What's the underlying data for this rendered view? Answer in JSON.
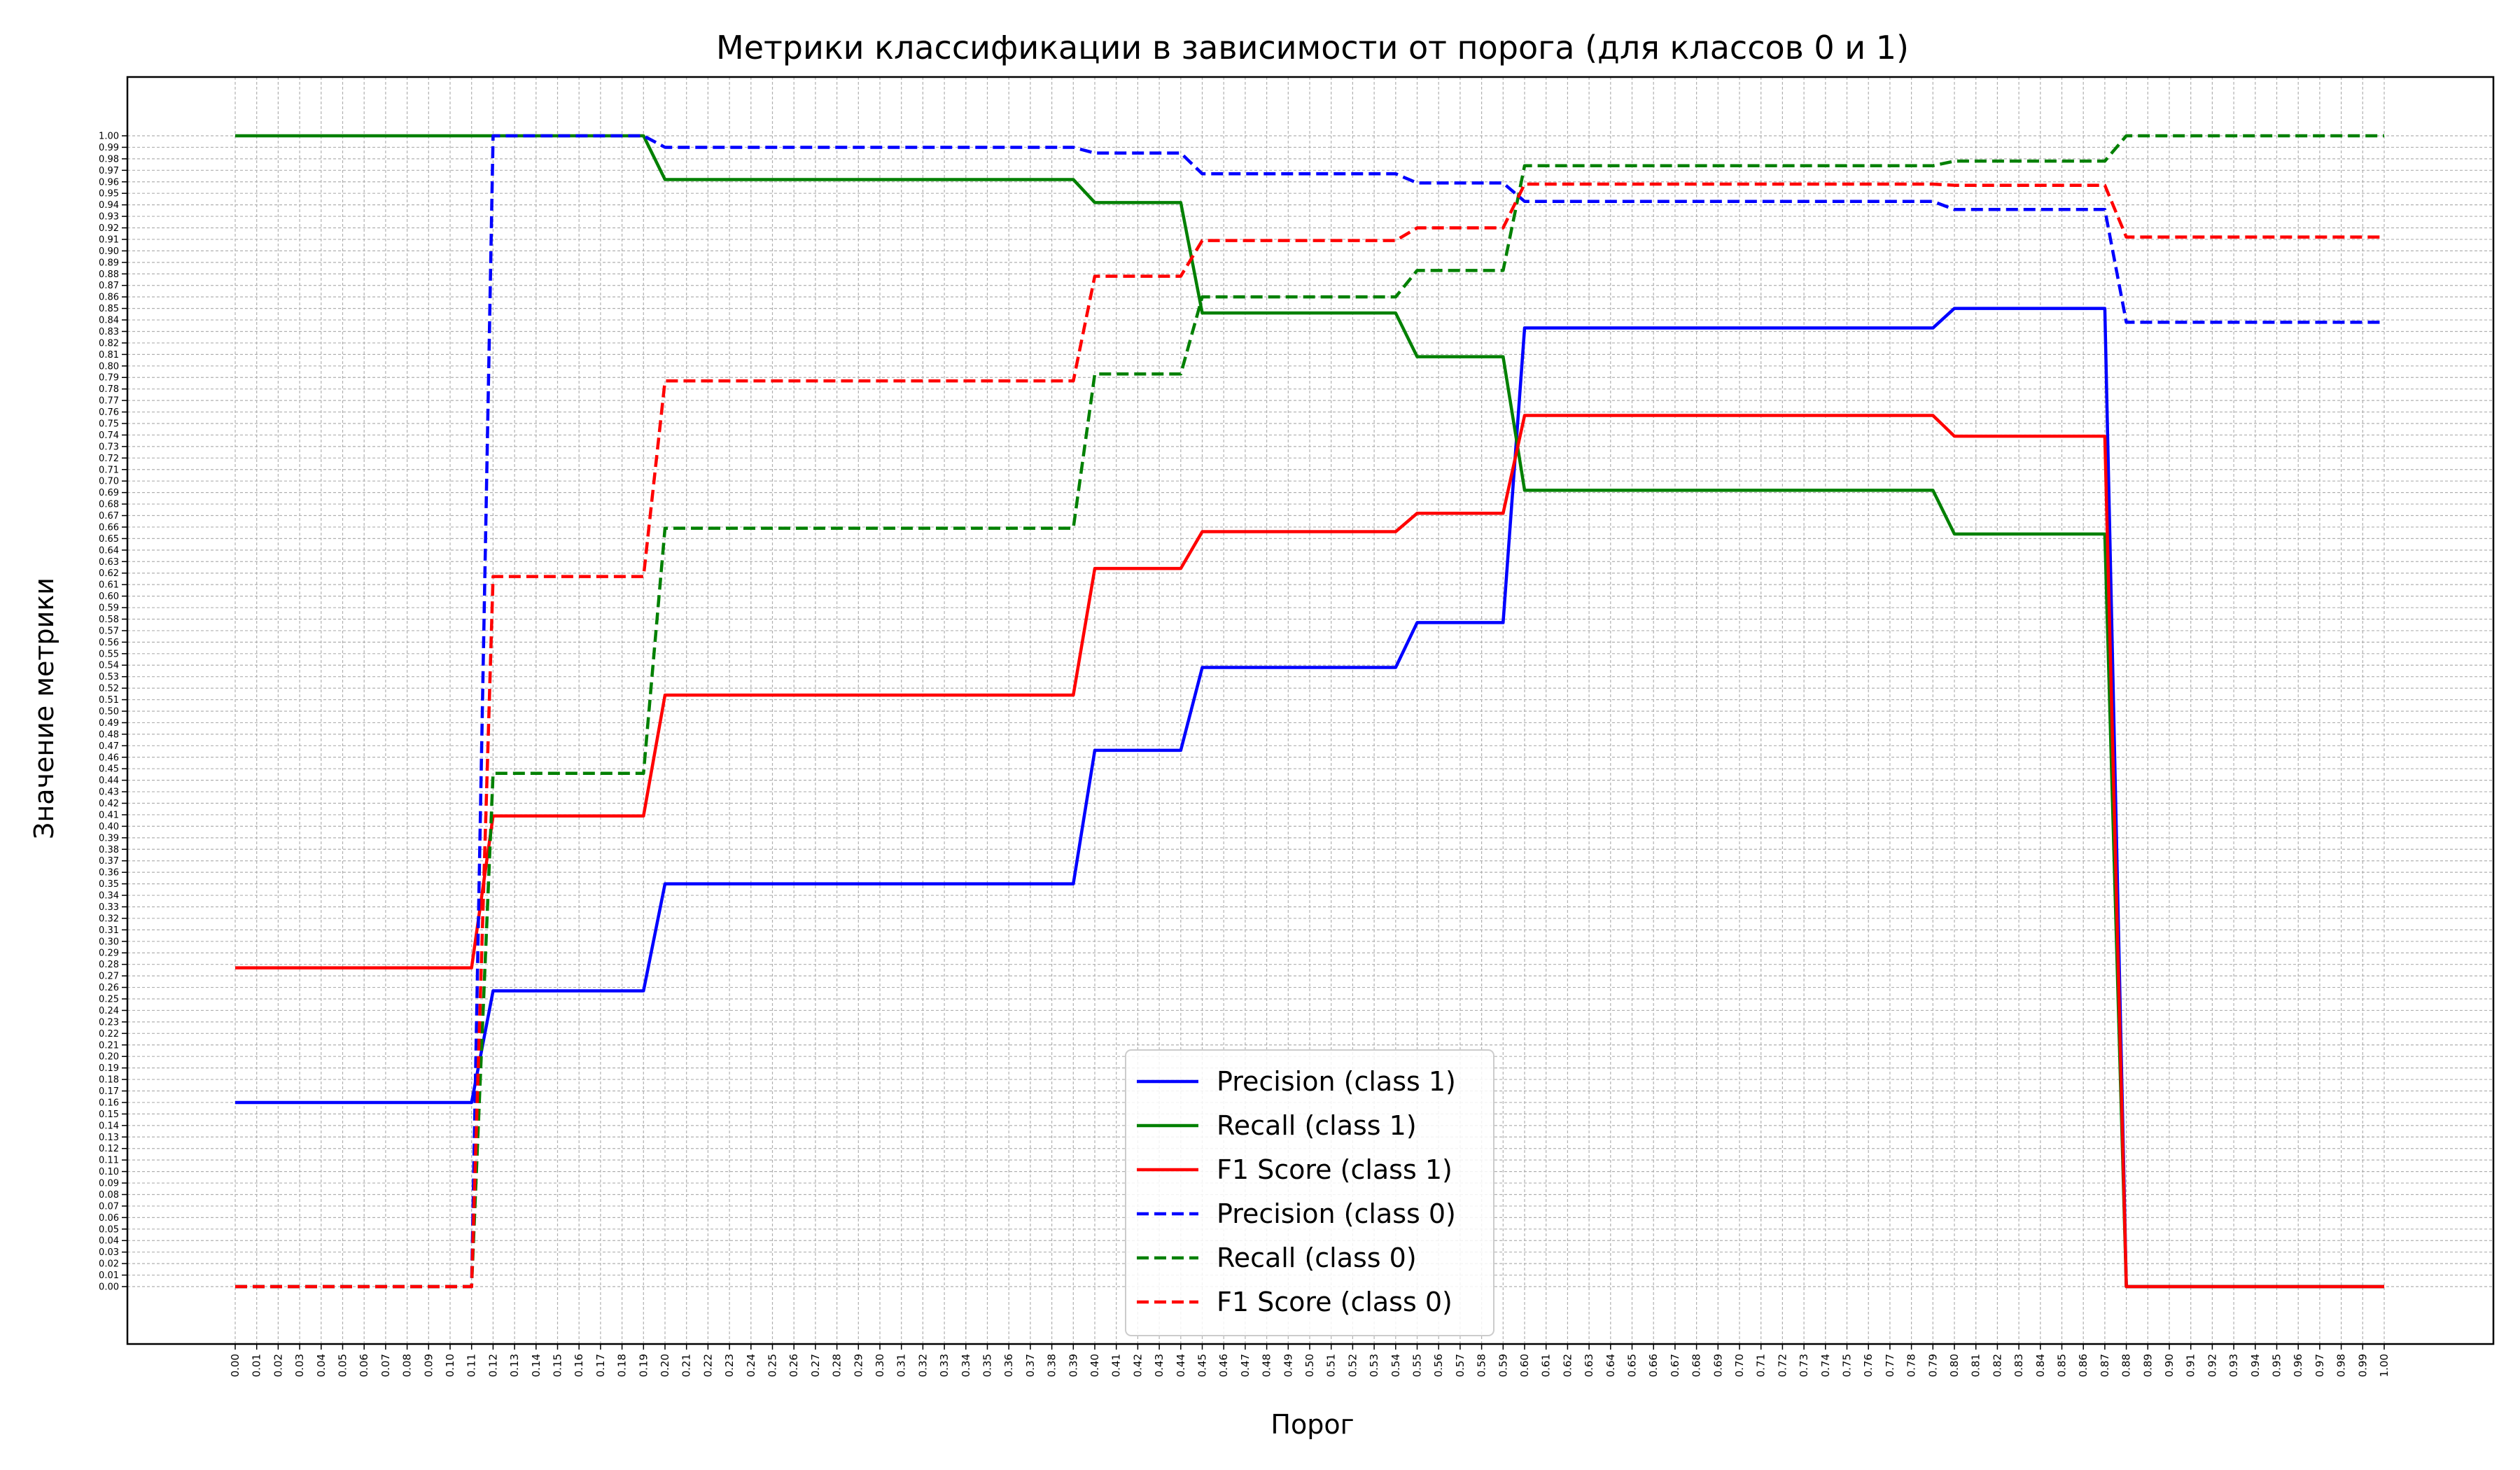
{
  "chart_data": {
    "type": "line",
    "title": "Метрики классификации в зависимости от порога (для классов 0 и 1)",
    "xlabel": "Порог",
    "ylabel": "Значение метрики",
    "xlim": [
      0,
      1
    ],
    "ylim": [
      0,
      1
    ],
    "grid": true,
    "legend_position": "bottom-center",
    "x": [
      0.0,
      0.01,
      0.02,
      0.03,
      0.04,
      0.05,
      0.06,
      0.07,
      0.08,
      0.09,
      0.1,
      0.11,
      0.12,
      0.13,
      0.14,
      0.15,
      0.16,
      0.17,
      0.18,
      0.19,
      0.2,
      0.21,
      0.22,
      0.23,
      0.24,
      0.25,
      0.26,
      0.27,
      0.28,
      0.29,
      0.3,
      0.31,
      0.32,
      0.33,
      0.34,
      0.35,
      0.36,
      0.37,
      0.38,
      0.39,
      0.4,
      0.41,
      0.42,
      0.43,
      0.44,
      0.45,
      0.46,
      0.47,
      0.48,
      0.49,
      0.5,
      0.51,
      0.52,
      0.53,
      0.54,
      0.55,
      0.56,
      0.57,
      0.58,
      0.59,
      0.6,
      0.61,
      0.62,
      0.63,
      0.64,
      0.65,
      0.66,
      0.67,
      0.68,
      0.69,
      0.7,
      0.71,
      0.72,
      0.73,
      0.74,
      0.75,
      0.76,
      0.77,
      0.78,
      0.79,
      0.8,
      0.81,
      0.82,
      0.83,
      0.84,
      0.85,
      0.86,
      0.87,
      0.88,
      0.89,
      0.9,
      0.91,
      0.92,
      0.93,
      0.94,
      0.95,
      0.96,
      0.97,
      0.98,
      0.99,
      1.0
    ],
    "x_tick_labels": [
      "0.00",
      "0.01",
      "0.02",
      "0.03",
      "0.04",
      "0.05",
      "0.06",
      "0.07",
      "0.08",
      "0.09",
      "0.10",
      "0.11",
      "0.12",
      "0.13",
      "0.14",
      "0.15",
      "0.16",
      "0.17",
      "0.18",
      "0.19",
      "0.20",
      "0.21",
      "0.22",
      "0.23",
      "0.24",
      "0.25",
      "0.26",
      "0.27",
      "0.28",
      "0.29",
      "0.30",
      "0.31",
      "0.32",
      "0.33",
      "0.34",
      "0.35",
      "0.36",
      "0.37",
      "0.38",
      "0.39",
      "0.40",
      "0.41",
      "0.42",
      "0.43",
      "0.44",
      "0.45",
      "0.46",
      "0.47",
      "0.48",
      "0.49",
      "0.50",
      "0.51",
      "0.52",
      "0.53",
      "0.54",
      "0.55",
      "0.56",
      "0.57",
      "0.58",
      "0.59",
      "0.60",
      "0.61",
      "0.62",
      "0.63",
      "0.64",
      "0.65",
      "0.66",
      "0.67",
      "0.68",
      "0.69",
      "0.70",
      "0.71",
      "0.72",
      "0.73",
      "0.74",
      "0.75",
      "0.76",
      "0.77",
      "0.78",
      "0.79",
      "0.80",
      "0.81",
      "0.82",
      "0.83",
      "0.84",
      "0.85",
      "0.86",
      "0.87",
      "0.88",
      "0.89",
      "0.90",
      "0.91",
      "0.92",
      "0.93",
      "0.94",
      "0.95",
      "0.96",
      "0.97",
      "0.98",
      "0.99",
      "1.00"
    ],
    "y_tick_labels": [
      "0.00",
      "0.01",
      "0.02",
      "0.03",
      "0.04",
      "0.05",
      "0.06",
      "0.07",
      "0.08",
      "0.09",
      "0.10",
      "0.11",
      "0.12",
      "0.13",
      "0.14",
      "0.15",
      "0.16",
      "0.17",
      "0.18",
      "0.19",
      "0.20",
      "0.21",
      "0.22",
      "0.23",
      "0.24",
      "0.25",
      "0.26",
      "0.27",
      "0.28",
      "0.29",
      "0.30",
      "0.31",
      "0.32",
      "0.33",
      "0.34",
      "0.35",
      "0.36",
      "0.37",
      "0.38",
      "0.39",
      "0.40",
      "0.41",
      "0.42",
      "0.43",
      "0.44",
      "0.45",
      "0.46",
      "0.47",
      "0.48",
      "0.49",
      "0.50",
      "0.51",
      "0.52",
      "0.53",
      "0.54",
      "0.55",
      "0.56",
      "0.57",
      "0.58",
      "0.59",
      "0.60",
      "0.61",
      "0.62",
      "0.63",
      "0.64",
      "0.65",
      "0.66",
      "0.67",
      "0.68",
      "0.69",
      "0.70",
      "0.71",
      "0.72",
      "0.73",
      "0.74",
      "0.75",
      "0.76",
      "0.77",
      "0.78",
      "0.79",
      "0.80",
      "0.81",
      "0.82",
      "0.83",
      "0.84",
      "0.85",
      "0.86",
      "0.87",
      "0.88",
      "0.89",
      "0.90",
      "0.91",
      "0.92",
      "0.93",
      "0.94",
      "0.95",
      "0.96",
      "0.97",
      "0.98",
      "0.99",
      "1.00"
    ],
    "series": [
      {
        "name": "Precision (class 1)",
        "color": "#0000ff",
        "linestyle": "solid",
        "values": [
          0.16,
          0.16,
          0.16,
          0.16,
          0.16,
          0.16,
          0.16,
          0.16,
          0.16,
          0.16,
          0.16,
          0.16,
          0.257,
          0.257,
          0.257,
          0.257,
          0.257,
          0.257,
          0.257,
          0.257,
          0.35,
          0.35,
          0.35,
          0.35,
          0.35,
          0.35,
          0.35,
          0.35,
          0.35,
          0.35,
          0.35,
          0.35,
          0.35,
          0.35,
          0.35,
          0.35,
          0.35,
          0.35,
          0.35,
          0.35,
          0.466,
          0.466,
          0.466,
          0.466,
          0.466,
          0.538,
          0.538,
          0.538,
          0.538,
          0.538,
          0.538,
          0.538,
          0.538,
          0.538,
          0.538,
          0.577,
          0.577,
          0.577,
          0.577,
          0.577,
          0.833,
          0.833,
          0.833,
          0.833,
          0.833,
          0.833,
          0.833,
          0.833,
          0.833,
          0.833,
          0.833,
          0.833,
          0.833,
          0.833,
          0.833,
          0.833,
          0.833,
          0.833,
          0.833,
          0.833,
          0.85,
          0.85,
          0.85,
          0.85,
          0.85,
          0.85,
          0.85,
          0.85,
          0.0,
          0.0,
          0.0,
          0.0,
          0.0,
          0.0,
          0.0,
          0.0,
          0.0,
          0.0,
          0.0,
          0.0,
          0.0
        ]
      },
      {
        "name": "Recall (class 1)",
        "color": "#008000",
        "linestyle": "solid",
        "values": [
          1.0,
          1.0,
          1.0,
          1.0,
          1.0,
          1.0,
          1.0,
          1.0,
          1.0,
          1.0,
          1.0,
          1.0,
          1.0,
          1.0,
          1.0,
          1.0,
          1.0,
          1.0,
          1.0,
          1.0,
          0.962,
          0.962,
          0.962,
          0.962,
          0.962,
          0.962,
          0.962,
          0.962,
          0.962,
          0.962,
          0.962,
          0.962,
          0.962,
          0.962,
          0.962,
          0.962,
          0.962,
          0.962,
          0.962,
          0.962,
          0.942,
          0.942,
          0.942,
          0.942,
          0.942,
          0.846,
          0.846,
          0.846,
          0.846,
          0.846,
          0.846,
          0.846,
          0.846,
          0.846,
          0.846,
          0.808,
          0.808,
          0.808,
          0.808,
          0.808,
          0.692,
          0.692,
          0.692,
          0.692,
          0.692,
          0.692,
          0.692,
          0.692,
          0.692,
          0.692,
          0.692,
          0.692,
          0.692,
          0.692,
          0.692,
          0.692,
          0.692,
          0.692,
          0.692,
          0.692,
          0.654,
          0.654,
          0.654,
          0.654,
          0.654,
          0.654,
          0.654,
          0.654,
          0.0,
          0.0,
          0.0,
          0.0,
          0.0,
          0.0,
          0.0,
          0.0,
          0.0,
          0.0,
          0.0,
          0.0,
          0.0
        ]
      },
      {
        "name": "F1 Score (class 1)",
        "color": "#ff0000",
        "linestyle": "solid",
        "values": [
          0.277,
          0.277,
          0.277,
          0.277,
          0.277,
          0.277,
          0.277,
          0.277,
          0.277,
          0.277,
          0.277,
          0.277,
          0.409,
          0.409,
          0.409,
          0.409,
          0.409,
          0.409,
          0.409,
          0.409,
          0.514,
          0.514,
          0.514,
          0.514,
          0.514,
          0.514,
          0.514,
          0.514,
          0.514,
          0.514,
          0.514,
          0.514,
          0.514,
          0.514,
          0.514,
          0.514,
          0.514,
          0.514,
          0.514,
          0.514,
          0.624,
          0.624,
          0.624,
          0.624,
          0.624,
          0.656,
          0.656,
          0.656,
          0.656,
          0.656,
          0.656,
          0.656,
          0.656,
          0.656,
          0.656,
          0.672,
          0.672,
          0.672,
          0.672,
          0.672,
          0.757,
          0.757,
          0.757,
          0.757,
          0.757,
          0.757,
          0.757,
          0.757,
          0.757,
          0.757,
          0.757,
          0.757,
          0.757,
          0.757,
          0.757,
          0.757,
          0.757,
          0.757,
          0.757,
          0.757,
          0.739,
          0.739,
          0.739,
          0.739,
          0.739,
          0.739,
          0.739,
          0.739,
          0.0,
          0.0,
          0.0,
          0.0,
          0.0,
          0.0,
          0.0,
          0.0,
          0.0,
          0.0,
          0.0,
          0.0,
          0.0
        ]
      },
      {
        "name": "Precision (class 0)",
        "color": "#0000ff",
        "linestyle": "dashed",
        "values": [
          0.0,
          0.0,
          0.0,
          0.0,
          0.0,
          0.0,
          0.0,
          0.0,
          0.0,
          0.0,
          0.0,
          0.0,
          1.0,
          1.0,
          1.0,
          1.0,
          1.0,
          1.0,
          1.0,
          1.0,
          0.99,
          0.99,
          0.99,
          0.99,
          0.99,
          0.99,
          0.99,
          0.99,
          0.99,
          0.99,
          0.99,
          0.99,
          0.99,
          0.99,
          0.99,
          0.99,
          0.99,
          0.99,
          0.99,
          0.99,
          0.985,
          0.985,
          0.985,
          0.985,
          0.985,
          0.967,
          0.967,
          0.967,
          0.967,
          0.967,
          0.967,
          0.967,
          0.967,
          0.967,
          0.967,
          0.959,
          0.959,
          0.959,
          0.959,
          0.959,
          0.943,
          0.943,
          0.943,
          0.943,
          0.943,
          0.943,
          0.943,
          0.943,
          0.943,
          0.943,
          0.943,
          0.943,
          0.943,
          0.943,
          0.943,
          0.943,
          0.943,
          0.943,
          0.943,
          0.943,
          0.936,
          0.936,
          0.936,
          0.936,
          0.936,
          0.936,
          0.936,
          0.936,
          0.838,
          0.838,
          0.838,
          0.838,
          0.838,
          0.838,
          0.838,
          0.838,
          0.838,
          0.838,
          0.838,
          0.838,
          0.838
        ]
      },
      {
        "name": "Recall (class 0)",
        "color": "#008000",
        "linestyle": "dashed",
        "values": [
          0.0,
          0.0,
          0.0,
          0.0,
          0.0,
          0.0,
          0.0,
          0.0,
          0.0,
          0.0,
          0.0,
          0.0,
          0.446,
          0.446,
          0.446,
          0.446,
          0.446,
          0.446,
          0.446,
          0.446,
          0.659,
          0.659,
          0.659,
          0.659,
          0.659,
          0.659,
          0.659,
          0.659,
          0.659,
          0.659,
          0.659,
          0.659,
          0.659,
          0.659,
          0.659,
          0.659,
          0.659,
          0.659,
          0.659,
          0.659,
          0.793,
          0.793,
          0.793,
          0.793,
          0.793,
          0.86,
          0.86,
          0.86,
          0.86,
          0.86,
          0.86,
          0.86,
          0.86,
          0.86,
          0.86,
          0.883,
          0.883,
          0.883,
          0.883,
          0.883,
          0.974,
          0.974,
          0.974,
          0.974,
          0.974,
          0.974,
          0.974,
          0.974,
          0.974,
          0.974,
          0.974,
          0.974,
          0.974,
          0.974,
          0.974,
          0.974,
          0.974,
          0.974,
          0.974,
          0.974,
          0.978,
          0.978,
          0.978,
          0.978,
          0.978,
          0.978,
          0.978,
          0.978,
          1.0,
          1.0,
          1.0,
          1.0,
          1.0,
          1.0,
          1.0,
          1.0,
          1.0,
          1.0,
          1.0,
          1.0,
          1.0
        ]
      },
      {
        "name": "F1 Score (class 0)",
        "color": "#ff0000",
        "linestyle": "dashed",
        "values": [
          0.0,
          0.0,
          0.0,
          0.0,
          0.0,
          0.0,
          0.0,
          0.0,
          0.0,
          0.0,
          0.0,
          0.0,
          0.617,
          0.617,
          0.617,
          0.617,
          0.617,
          0.617,
          0.617,
          0.617,
          0.787,
          0.787,
          0.787,
          0.787,
          0.787,
          0.787,
          0.787,
          0.787,
          0.787,
          0.787,
          0.787,
          0.787,
          0.787,
          0.787,
          0.787,
          0.787,
          0.787,
          0.787,
          0.787,
          0.787,
          0.878,
          0.878,
          0.878,
          0.878,
          0.878,
          0.909,
          0.909,
          0.909,
          0.909,
          0.909,
          0.909,
          0.909,
          0.909,
          0.909,
          0.909,
          0.92,
          0.92,
          0.92,
          0.92,
          0.92,
          0.958,
          0.958,
          0.958,
          0.958,
          0.958,
          0.958,
          0.958,
          0.958,
          0.958,
          0.958,
          0.958,
          0.958,
          0.958,
          0.958,
          0.958,
          0.958,
          0.958,
          0.958,
          0.958,
          0.958,
          0.957,
          0.957,
          0.957,
          0.957,
          0.957,
          0.957,
          0.957,
          0.957,
          0.912,
          0.912,
          0.912,
          0.912,
          0.912,
          0.912,
          0.912,
          0.912,
          0.912,
          0.912,
          0.912,
          0.912,
          0.912
        ]
      }
    ]
  }
}
